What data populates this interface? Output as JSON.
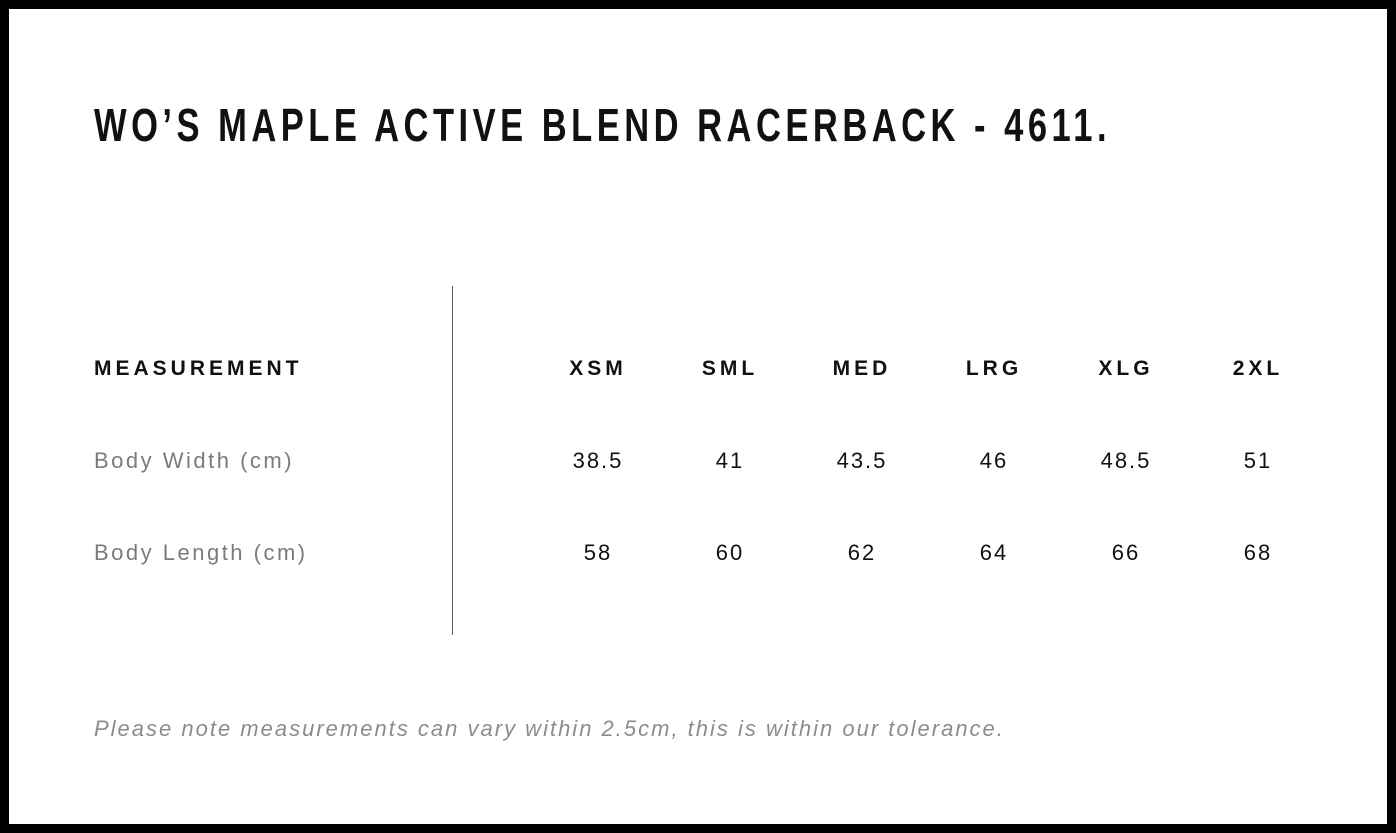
{
  "page": {
    "title": "WO’S MAPLE ACTIVE BLEND RACERBACK - 4611.",
    "note": "Please note measurements can vary within 2.5cm, this is within our tolerance."
  },
  "table": {
    "columns": [
      "MEASUREMENT",
      "XSM",
      "SML",
      "MED",
      "LRG",
      "XLG",
      "2XL"
    ],
    "rows": [
      {
        "label": "Body Width (cm)",
        "values": [
          "38.5",
          "41",
          "43.5",
          "46",
          "48.5",
          "51"
        ]
      },
      {
        "label": "Body Length (cm)",
        "values": [
          "58",
          "60",
          "62",
          "64",
          "66",
          "68"
        ]
      }
    ]
  },
  "chart_data": {
    "type": "table",
    "title": "WO’S MAPLE ACTIVE BLEND RACERBACK - 4611.",
    "categories": [
      "XSM",
      "SML",
      "MED",
      "LRG",
      "XLG",
      "2XL"
    ],
    "series": [
      {
        "name": "Body Width (cm)",
        "values": [
          38.5,
          41,
          43.5,
          46,
          48.5,
          51
        ]
      },
      {
        "name": "Body Length (cm)",
        "values": [
          58,
          60,
          62,
          64,
          66,
          68
        ]
      }
    ]
  },
  "colors": {
    "frame_border": "#000000",
    "heading_text": "#111111",
    "value_text": "#111111",
    "row_label_text": "#7b7b7b",
    "note_text": "#8c8c8c",
    "divider_line": "#5a5a5a",
    "background": "#ffffff"
  }
}
